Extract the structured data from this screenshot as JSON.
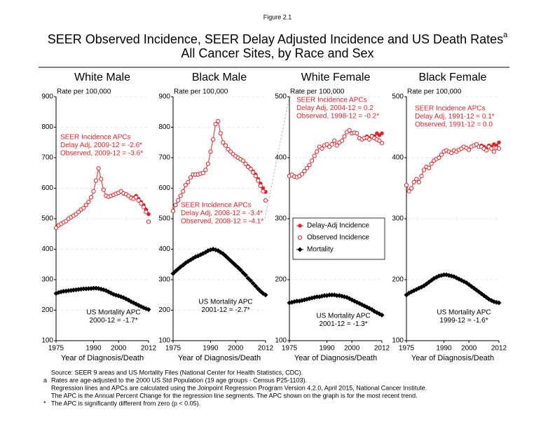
{
  "figure_label": "Figure 2.1",
  "title": "SEER Observed Incidence, SEER Delay Adjusted Incidence and US Death Rates",
  "title_sup": "a",
  "subtitle": "All Cancer Sites, by Race and Sex",
  "footnotes": [
    {
      "text": "Source: SEER 9 areas and US Mortality Files (National Center for Health Statistics, CDC)."
    },
    {
      "mark": "a",
      "text": "Rates are age-adjusted to the 2000 US Std Population (19 age groups - Census P25-1103)."
    },
    {
      "text": "Regression lines and APCs are calculated using the Joinpoint Regression Program Version 4.2.0, April 2015, National Cancer Institute."
    },
    {
      "text": "The APC is the Annual Percent Change for the regression line segments. The APC shown on the graph is for the most recent trend."
    },
    {
      "mark": "*",
      "text": "The APC is significantly different from zero (p < 0.05)."
    }
  ],
  "chart_data": [
    {
      "type": "scatter",
      "title": "White Male",
      "ylabel": "Rate per 100,000",
      "xlabel": "Year of Diagnosis/Death",
      "xlim": [
        1975,
        2012
      ],
      "xticks": [
        1975,
        1990,
        2000,
        2012
      ],
      "ylim": [
        100,
        900
      ],
      "yticks": [
        100,
        200,
        300,
        400,
        500,
        600,
        700,
        800,
        900
      ],
      "grid": true,
      "x": [
        1975,
        1976,
        1977,
        1978,
        1979,
        1980,
        1981,
        1982,
        1983,
        1984,
        1985,
        1986,
        1987,
        1988,
        1989,
        1990,
        1991,
        1992,
        1993,
        1994,
        1995,
        1996,
        1997,
        1998,
        1999,
        2000,
        2001,
        2002,
        2003,
        2004,
        2005,
        2006,
        2007,
        2008,
        2009,
        2010,
        2011,
        2012
      ],
      "series": [
        {
          "name": "Delay-Adj Incidence",
          "color": "#e3242b",
          "marker": "circle",
          "line": true,
          "values": [
            470,
            478,
            483,
            488,
            492,
            500,
            505,
            510,
            515,
            522,
            530,
            535,
            545,
            555,
            570,
            590,
            625,
            665,
            630,
            595,
            575,
            572,
            575,
            578,
            582,
            585,
            590,
            583,
            580,
            575,
            570,
            568,
            575,
            565,
            555,
            545,
            530,
            515
          ]
        },
        {
          "name": "Observed Incidence",
          "color": "#e3242b",
          "marker": "open-circle",
          "line": false,
          "values": [
            470,
            478,
            483,
            488,
            492,
            500,
            505,
            510,
            515,
            522,
            530,
            535,
            545,
            555,
            570,
            590,
            625,
            665,
            630,
            595,
            575,
            572,
            575,
            578,
            582,
            585,
            590,
            583,
            580,
            575,
            568,
            565,
            570,
            560,
            550,
            538,
            522,
            490
          ]
        },
        {
          "name": "Mortality",
          "color": "#000000",
          "marker": "diamond",
          "line": true,
          "values": [
            255,
            258,
            260,
            262,
            263,
            264,
            265,
            266,
            267,
            268,
            269,
            270,
            270,
            271,
            271,
            272,
            272,
            271,
            269,
            267,
            264,
            260,
            256,
            252,
            249,
            247,
            244,
            241,
            237,
            233,
            228,
            224,
            220,
            216,
            212,
            208,
            205,
            202
          ]
        }
      ],
      "annotations": [
        {
          "color": "#e3242b",
          "lines": [
            "SEER Incidence APCs",
            "Delay Adj, 2009-12 = -2.6*",
            "Observed, 2009-12 = -3.6*"
          ]
        },
        {
          "color": "#000000",
          "lines": [
            "US Mortality APC",
            "2000-12 = -1.7*"
          ]
        }
      ]
    },
    {
      "type": "scatter",
      "title": "Black Male",
      "ylabel": "Rate per 100,000",
      "xlabel": "Year of Diagnosis/Death",
      "xlim": [
        1975,
        2012
      ],
      "xticks": [
        1975,
        1990,
        2000,
        2012
      ],
      "ylim": [
        100,
        900
      ],
      "yticks": [
        100,
        200,
        300,
        400,
        500,
        600,
        700,
        800,
        900
      ],
      "grid": true,
      "x": [
        1975,
        1976,
        1977,
        1978,
        1979,
        1980,
        1981,
        1982,
        1983,
        1984,
        1985,
        1986,
        1987,
        1988,
        1989,
        1990,
        1991,
        1992,
        1993,
        1994,
        1995,
        1996,
        1997,
        1998,
        1999,
        2000,
        2001,
        2002,
        2003,
        2004,
        2005,
        2006,
        2007,
        2008,
        2009,
        2010,
        2011,
        2012
      ],
      "series": [
        {
          "name": "Delay-Adj Incidence",
          "color": "#e3242b",
          "marker": "circle",
          "line": true,
          "values": [
            525,
            545,
            560,
            575,
            590,
            610,
            620,
            635,
            645,
            645,
            645,
            648,
            650,
            660,
            680,
            720,
            760,
            810,
            820,
            780,
            750,
            740,
            728,
            720,
            712,
            705,
            700,
            695,
            690,
            680,
            672,
            665,
            655,
            645,
            630,
            615,
            600,
            588
          ]
        },
        {
          "name": "Observed Incidence",
          "color": "#e3242b",
          "marker": "open-circle",
          "line": false,
          "values": [
            525,
            545,
            560,
            575,
            590,
            610,
            620,
            635,
            645,
            645,
            645,
            648,
            650,
            660,
            680,
            720,
            760,
            810,
            820,
            780,
            750,
            740,
            728,
            720,
            712,
            705,
            700,
            695,
            690,
            680,
            670,
            663,
            652,
            640,
            625,
            608,
            590,
            560
          ]
        },
        {
          "name": "Mortality",
          "color": "#000000",
          "marker": "diamond",
          "line": true,
          "values": [
            320,
            328,
            335,
            342,
            348,
            355,
            360,
            365,
            370,
            375,
            378,
            382,
            386,
            390,
            395,
            398,
            400,
            398,
            395,
            390,
            385,
            378,
            370,
            362,
            355,
            347,
            340,
            332,
            323,
            315,
            305,
            297,
            288,
            279,
            270,
            262,
            255,
            250
          ]
        }
      ],
      "annotations": [
        {
          "color": "#e3242b",
          "lines": [
            "SEER Incidence APCs",
            "Delay Adj, 2008-12 = -3.4*",
            "Observed, 2008-12 = -4.1*"
          ]
        },
        {
          "color": "#000000",
          "lines": [
            "US Mortality APC",
            "2001-12 = -2.7*"
          ]
        }
      ]
    },
    {
      "type": "scatter",
      "title": "White Female",
      "ylabel": "Rate per 100,000",
      "xlabel": "Year of Diagnosis/Death",
      "xlim": [
        1975,
        2012
      ],
      "xticks": [
        1975,
        1990,
        2000,
        2012
      ],
      "ylim": [
        100,
        500
      ],
      "yticks": [
        100,
        200,
        300,
        400,
        500
      ],
      "grid": true,
      "legend": "center-left",
      "x": [
        1975,
        1976,
        1977,
        1978,
        1979,
        1980,
        1981,
        1982,
        1983,
        1984,
        1985,
        1986,
        1987,
        1988,
        1989,
        1990,
        1991,
        1992,
        1993,
        1994,
        1995,
        1996,
        1997,
        1998,
        1999,
        2000,
        2001,
        2002,
        2003,
        2004,
        2005,
        2006,
        2007,
        2008,
        2009,
        2010,
        2011,
        2012
      ],
      "series": [
        {
          "name": "Delay-Adj Incidence",
          "color": "#e3242b",
          "marker": "circle",
          "line": true,
          "values": [
            370,
            372,
            369,
            368,
            370,
            373,
            378,
            383,
            388,
            395,
            403,
            410,
            418,
            415,
            420,
            422,
            418,
            422,
            428,
            420,
            425,
            428,
            435,
            442,
            445,
            440,
            441,
            440,
            432,
            430,
            432,
            435,
            432,
            436,
            435,
            440,
            437,
            440
          ]
        },
        {
          "name": "Observed Incidence",
          "color": "#e3242b",
          "marker": "open-circle",
          "line": false,
          "values": [
            370,
            372,
            369,
            368,
            370,
            373,
            378,
            383,
            388,
            395,
            403,
            410,
            418,
            415,
            420,
            422,
            418,
            422,
            428,
            420,
            425,
            428,
            435,
            442,
            445,
            440,
            441,
            440,
            432,
            430,
            432,
            433,
            430,
            435,
            432,
            430,
            428,
            424
          ]
        },
        {
          "name": "Mortality",
          "color": "#000000",
          "marker": "diamond",
          "line": true,
          "values": [
            162,
            163,
            164,
            165,
            165,
            166,
            167,
            168,
            169,
            170,
            171,
            172,
            172,
            173,
            174,
            174,
            175,
            175,
            175,
            174,
            174,
            173,
            172,
            171,
            169,
            167,
            165,
            163,
            161,
            159,
            157,
            155,
            153,
            151,
            148,
            146,
            144,
            142
          ]
        }
      ],
      "annotations": [
        {
          "color": "#e3242b",
          "lines": [
            "SEER Incidence APCs",
            "Delay Adj, 2004-12 = 0.2",
            "Observed, 1998-12 = -0.2*"
          ]
        },
        {
          "color": "#000000",
          "lines": [
            "US Mortality APC",
            "2001-12 = -1.3*"
          ]
        }
      ]
    },
    {
      "type": "scatter",
      "title": "Black Female",
      "ylabel": "Rate per 100,000",
      "xlabel": "Year of Diagnosis/Death",
      "xlim": [
        1975,
        2012
      ],
      "xticks": [
        1975,
        1990,
        2000,
        2012
      ],
      "ylim": [
        100,
        500
      ],
      "yticks": [
        100,
        200,
        300,
        400,
        500
      ],
      "grid": true,
      "x": [
        1975,
        1976,
        1977,
        1978,
        1979,
        1980,
        1981,
        1982,
        1983,
        1984,
        1985,
        1986,
        1987,
        1988,
        1989,
        1990,
        1991,
        1992,
        1993,
        1994,
        1995,
        1996,
        1997,
        1998,
        1999,
        2000,
        2001,
        2002,
        2003,
        2004,
        2005,
        2006,
        2007,
        2008,
        2009,
        2010,
        2011,
        2012
      ],
      "series": [
        {
          "name": "Delay-Adj Incidence",
          "color": "#e3242b",
          "marker": "circle",
          "line": true,
          "values": [
            355,
            345,
            350,
            360,
            365,
            360,
            370,
            380,
            385,
            383,
            390,
            395,
            398,
            400,
            405,
            410,
            412,
            410,
            408,
            412,
            410,
            413,
            415,
            418,
            416,
            413,
            418,
            420,
            422,
            418,
            420,
            418,
            415,
            420,
            418,
            422,
            420,
            425
          ]
        },
        {
          "name": "Observed Incidence",
          "color": "#e3242b",
          "marker": "open-circle",
          "line": false,
          "values": [
            355,
            345,
            350,
            360,
            365,
            360,
            370,
            380,
            385,
            383,
            390,
            395,
            398,
            400,
            405,
            410,
            412,
            410,
            408,
            412,
            410,
            413,
            415,
            418,
            416,
            413,
            418,
            420,
            422,
            418,
            418,
            415,
            412,
            418,
            415,
            410,
            416,
            415
          ]
        },
        {
          "name": "Mortality",
          "color": "#000000",
          "marker": "diamond",
          "line": true,
          "values": [
            175,
            178,
            180,
            182,
            184,
            186,
            188,
            190,
            193,
            196,
            199,
            202,
            204,
            206,
            207,
            208,
            208,
            207,
            206,
            205,
            203,
            201,
            199,
            197,
            195,
            192,
            189,
            186,
            183,
            180,
            177,
            174,
            171,
            168,
            166,
            164,
            163,
            162
          ]
        }
      ],
      "annotations": [
        {
          "color": "#e3242b",
          "lines": [
            "SEER Incidence APCs",
            "Delay Adj, 1991-12 = 0.1*",
            "Observed, 1991-12 = 0.0"
          ]
        },
        {
          "color": "#000000",
          "lines": [
            "US Mortality APC",
            "1999-12 = -1.6*"
          ]
        }
      ]
    }
  ]
}
